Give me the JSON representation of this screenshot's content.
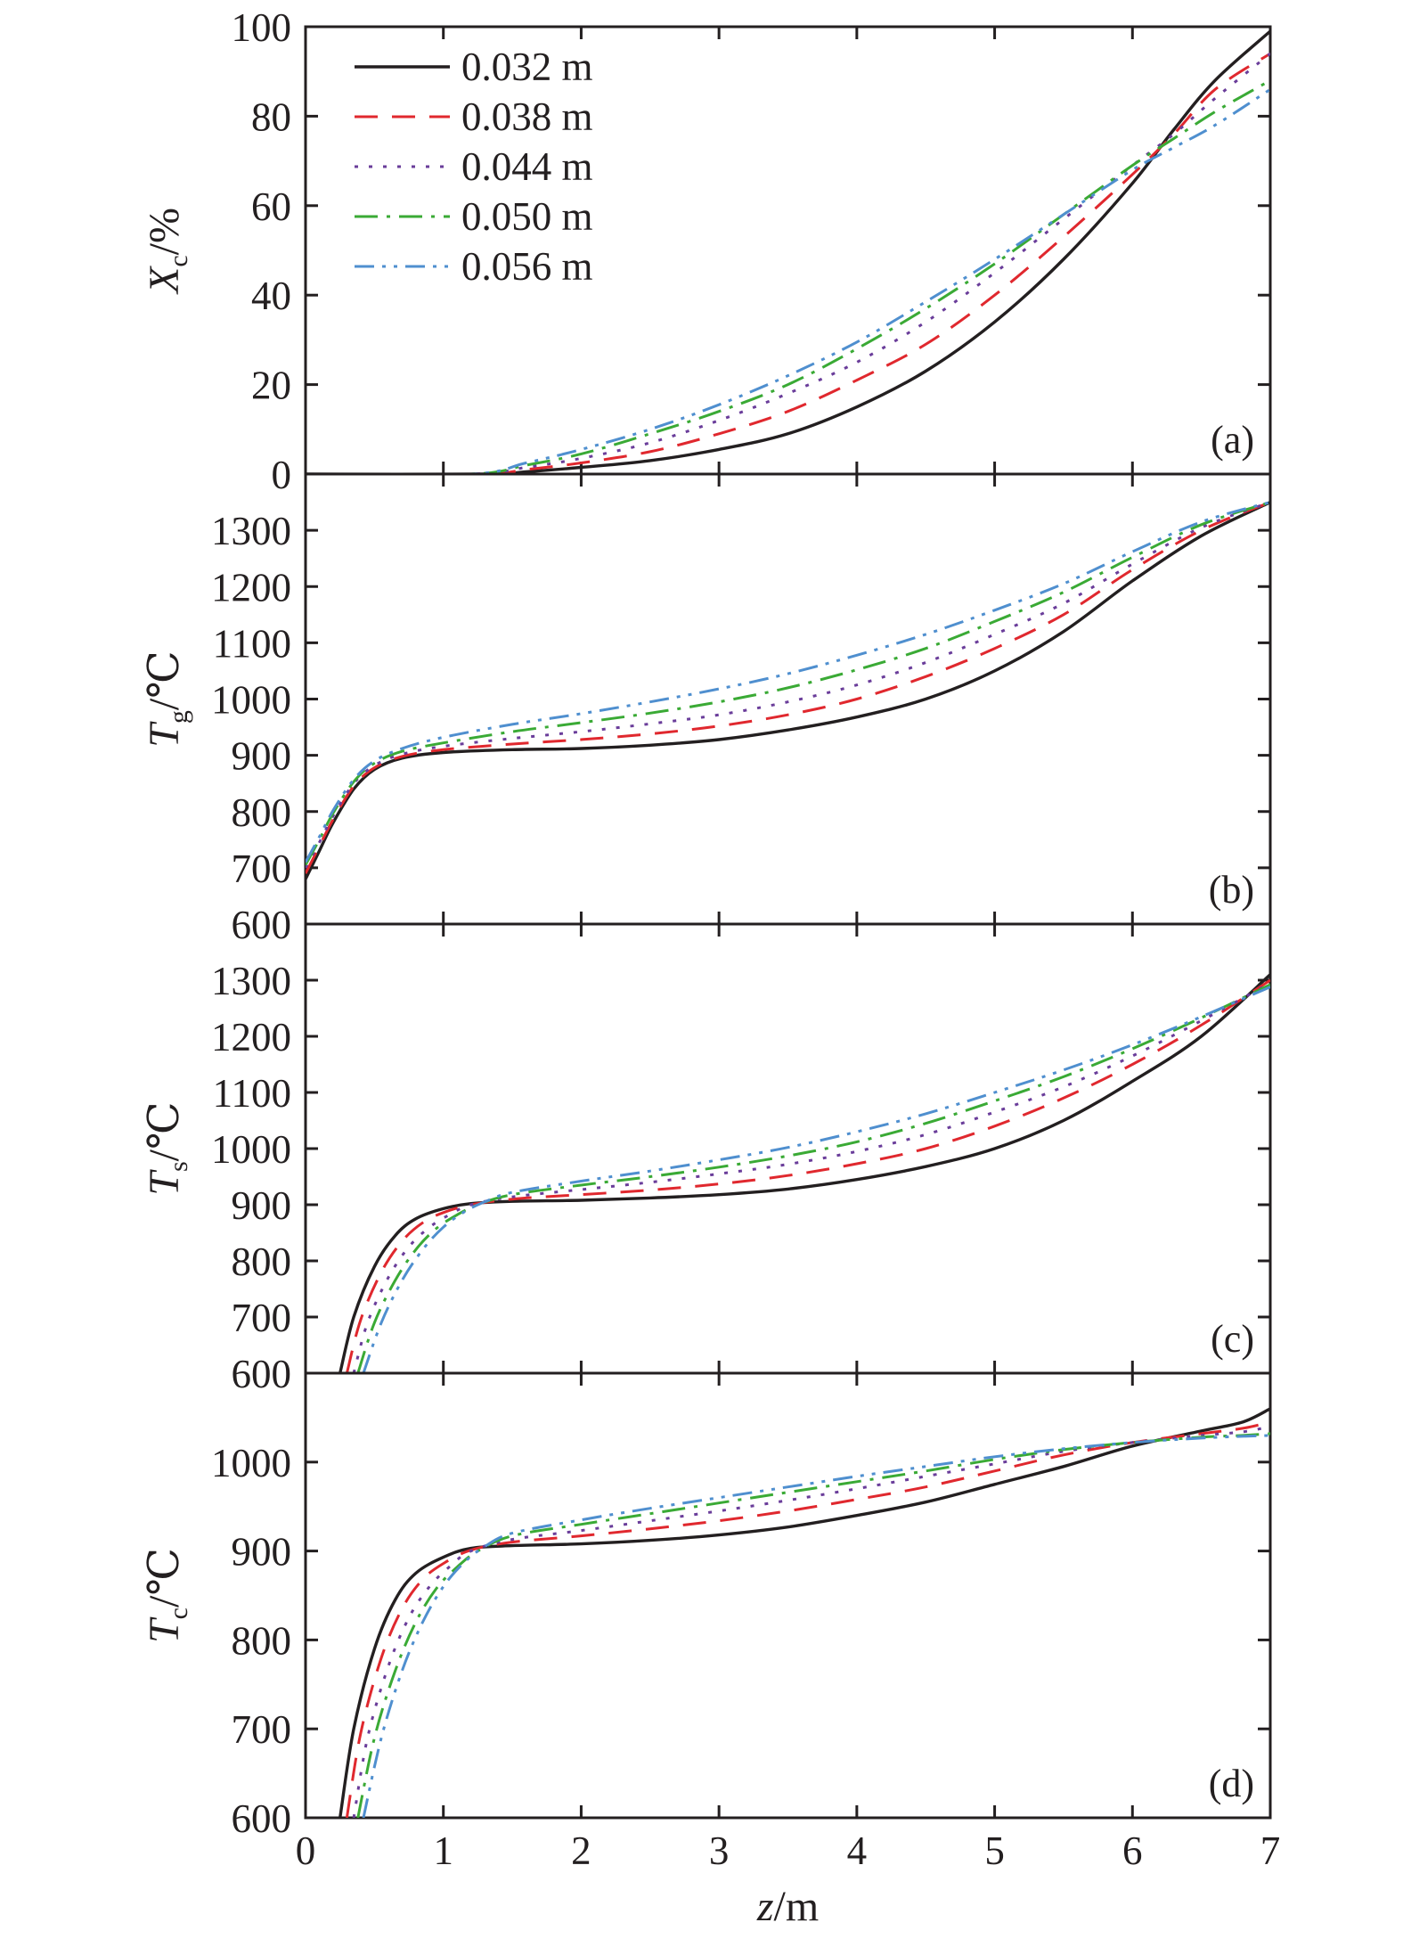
{
  "chart_data": {
    "type": "line",
    "series_styles": [
      {
        "name": "0.032 m",
        "color": "#231f20",
        "dash": "solid"
      },
      {
        "name": "0.038 m",
        "color": "#e0282e",
        "dash": "dashed"
      },
      {
        "name": "0.044 m",
        "color": "#6a3d9a",
        "dash": "dotted"
      },
      {
        "name": "0.050 m",
        "color": "#3aaa35",
        "dash": "dash-dot"
      },
      {
        "name": "0.056 m",
        "color": "#4f8fcf",
        "dash": "dash-dot-dot"
      }
    ],
    "xlabel": {
      "italic": "z",
      "rest": "/m"
    },
    "xlim": [
      0,
      7
    ],
    "xticks": [
      "0",
      "1",
      "2",
      "3",
      "4",
      "5",
      "6",
      "7"
    ],
    "legend_placement": "top-left of panel (a)",
    "panels": [
      {
        "id": "a",
        "tag": "(a)",
        "ylabel": {
          "main": "X",
          "sub": "c",
          "rest": "/%"
        },
        "ylim": [
          0,
          100
        ],
        "yticks": [
          "0",
          "20",
          "40",
          "60",
          "80",
          "100"
        ],
        "series": [
          {
            "name": "0.032 m",
            "x": [
              0,
              1.3,
              1.6,
              2.0,
              2.5,
              3.0,
              3.5,
              4.0,
              4.5,
              5.0,
              5.5,
              6.0,
              6.3,
              6.6,
              7.0
            ],
            "y": [
              0,
              0,
              0.5,
              1.5,
              3,
              5.5,
              9,
              15,
              23,
              34,
              48,
              65,
              77,
              88,
              99
            ]
          },
          {
            "name": "0.038 m",
            "x": [
              0,
              1.25,
              1.6,
              2.0,
              2.5,
              3.0,
              3.5,
              4.0,
              4.5,
              5.0,
              5.5,
              6.0,
              6.3,
              6.6,
              7.0
            ],
            "y": [
              0,
              0,
              1,
              2.5,
              5,
              9,
              14,
              21,
              29,
              40,
              53,
              67,
              76,
              86,
              94
            ]
          },
          {
            "name": "0.044 m",
            "x": [
              0,
              1.2,
              1.6,
              2.0,
              2.5,
              3.0,
              3.5,
              4.0,
              4.5,
              5.0,
              5.5,
              6.0,
              6.3,
              6.6,
              7.0
            ],
            "y": [
              0,
              0,
              1.5,
              3.5,
              7,
              12,
              18,
              25,
              34,
              45,
              57,
              69,
              76,
              84,
              94
            ]
          },
          {
            "name": "0.050 m",
            "x": [
              0,
              1.2,
              1.6,
              2.0,
              2.5,
              3.0,
              3.5,
              4.0,
              4.5,
              5.0,
              5.5,
              6.0,
              6.3,
              6.6,
              7.0
            ],
            "y": [
              0,
              0,
              2,
              4.5,
              9,
              14,
              20,
              28,
              37,
              47,
              58,
              69,
              75,
              81,
              88
            ]
          },
          {
            "name": "0.056 m",
            "x": [
              0,
              1.2,
              1.6,
              2.0,
              2.5,
              3.0,
              3.5,
              4.0,
              4.5,
              5.0,
              5.5,
              6.0,
              6.3,
              6.6,
              7.0
            ],
            "y": [
              0,
              0,
              2.5,
              5.5,
              10,
              15.5,
              22,
              29.5,
              38.5,
              48,
              58,
              68,
              73,
              78,
              86
            ]
          }
        ]
      },
      {
        "id": "b",
        "tag": "(b)",
        "ylabel": {
          "main": "T",
          "sub": "g",
          "rest": "/℃"
        },
        "ylim": [
          600,
          1400
        ],
        "yticks": [
          "600",
          "700",
          "800",
          "900",
          "1000",
          "1100",
          "1200",
          "1300"
        ],
        "series": [
          {
            "name": "0.032 m",
            "x": [
              0,
              0.1,
              0.2,
              0.35,
              0.5,
              0.7,
              1.0,
              1.5,
              2.0,
              2.5,
              3.0,
              3.5,
              4.0,
              4.5,
              5.0,
              5.5,
              6.0,
              6.5,
              7.0
            ],
            "y": [
              680,
              730,
              780,
              840,
              875,
              895,
              905,
              910,
              912,
              918,
              928,
              945,
              968,
              1000,
              1050,
              1120,
              1210,
              1290,
              1350
            ]
          },
          {
            "name": "0.038 m",
            "x": [
              0,
              0.1,
              0.2,
              0.35,
              0.5,
              0.7,
              1.0,
              1.5,
              2.0,
              2.5,
              3.0,
              3.5,
              4.0,
              4.5,
              5.0,
              5.5,
              6.0,
              6.5,
              7.0
            ],
            "y": [
              690,
              738,
              786,
              845,
              878,
              898,
              910,
              920,
              928,
              938,
              952,
              972,
              1000,
              1040,
              1090,
              1150,
              1230,
              1300,
              1350
            ]
          },
          {
            "name": "0.044 m",
            "x": [
              0,
              0.1,
              0.2,
              0.35,
              0.5,
              0.7,
              1.0,
              1.5,
              2.0,
              2.5,
              3.0,
              3.5,
              4.0,
              4.5,
              5.0,
              5.5,
              6.0,
              6.5,
              7.0
            ],
            "y": [
              700,
              745,
              792,
              850,
              882,
              902,
              916,
              930,
              942,
              956,
              972,
              995,
              1025,
              1065,
              1115,
              1170,
              1240,
              1305,
              1350
            ]
          },
          {
            "name": "0.050 m",
            "x": [
              0,
              0.1,
              0.2,
              0.35,
              0.5,
              0.7,
              1.0,
              1.5,
              2.0,
              2.5,
              3.0,
              3.5,
              4.0,
              4.5,
              5.0,
              5.5,
              6.0,
              6.5,
              7.0
            ],
            "y": [
              705,
              750,
              797,
              853,
              886,
              907,
              922,
              942,
              958,
              975,
              995,
              1020,
              1052,
              1090,
              1138,
              1190,
              1252,
              1310,
              1350
            ]
          },
          {
            "name": "0.056 m",
            "x": [
              0,
              0.1,
              0.2,
              0.35,
              0.5,
              0.7,
              1.0,
              1.5,
              2.0,
              2.5,
              3.0,
              3.5,
              4.0,
              4.5,
              5.0,
              5.5,
              6.0,
              6.5,
              7.0
            ],
            "y": [
              710,
              755,
              802,
              857,
              890,
              912,
              932,
              955,
              974,
              995,
              1018,
              1045,
              1078,
              1115,
              1158,
              1205,
              1262,
              1315,
              1350
            ]
          }
        ]
      },
      {
        "id": "c",
        "tag": "(c)",
        "ylabel": {
          "main": "T",
          "sub": "s",
          "rest": "/℃"
        },
        "ylim": [
          600,
          1400
        ],
        "yticks": [
          "600",
          "700",
          "800",
          "900",
          "1000",
          "1100",
          "1200",
          "1300"
        ],
        "series": [
          {
            "name": "0.032 m",
            "x": [
              0.25,
              0.35,
              0.5,
              0.65,
              0.8,
              1.0,
              1.2,
              1.5,
              2.0,
              2.5,
              3.0,
              3.5,
              4.0,
              4.5,
              5.0,
              5.5,
              6.0,
              6.5,
              7.0
            ],
            "y": [
              600,
              700,
              790,
              845,
              875,
              893,
              902,
              906,
              908,
              912,
              918,
              928,
              945,
              968,
              1000,
              1050,
              1120,
              1200,
              1310
            ]
          },
          {
            "name": "0.038 m",
            "x": [
              0.3,
              0.4,
              0.55,
              0.7,
              0.85,
              1.0,
              1.2,
              1.5,
              2.0,
              2.5,
              3.0,
              3.5,
              4.0,
              4.5,
              5.0,
              5.5,
              6.0,
              6.5,
              7.0
            ],
            "y": [
              600,
              695,
              780,
              835,
              868,
              886,
              900,
              910,
              918,
              926,
              937,
              952,
              973,
              1000,
              1040,
              1090,
              1150,
              1220,
              1300
            ]
          },
          {
            "name": "0.044 m",
            "x": [
              0.35,
              0.45,
              0.6,
              0.75,
              0.9,
              1.05,
              1.2,
              1.5,
              2.0,
              2.5,
              3.0,
              3.5,
              4.0,
              4.5,
              5.0,
              5.5,
              6.0,
              6.5,
              7.0
            ],
            "y": [
              600,
              690,
              770,
              825,
              860,
              883,
              900,
              914,
              927,
              940,
              955,
              972,
              995,
              1025,
              1065,
              1110,
              1165,
              1228,
              1295
            ]
          },
          {
            "name": "0.050 m",
            "x": [
              0.38,
              0.5,
              0.65,
              0.8,
              0.95,
              1.1,
              1.25,
              1.5,
              2.0,
              2.5,
              3.0,
              3.5,
              4.0,
              4.5,
              5.0,
              5.5,
              6.0,
              6.5,
              7.0
            ],
            "y": [
              600,
              690,
              765,
              820,
              858,
              882,
              900,
              918,
              935,
              950,
              967,
              987,
              1012,
              1045,
              1085,
              1128,
              1178,
              1233,
              1292
            ]
          },
          {
            "name": "0.056 m",
            "x": [
              0.42,
              0.55,
              0.7,
              0.85,
              1.0,
              1.15,
              1.3,
              1.5,
              2.0,
              2.5,
              3.0,
              3.5,
              4.0,
              4.5,
              5.0,
              5.5,
              6.0,
              6.5,
              7.0
            ],
            "y": [
              600,
              690,
              765,
              820,
              860,
              887,
              905,
              922,
              942,
              960,
              980,
              1002,
              1030,
              1062,
              1100,
              1140,
              1185,
              1235,
              1288
            ]
          }
        ]
      },
      {
        "id": "d",
        "tag": "(d)",
        "ylabel": {
          "main": "T",
          "sub": "c",
          "rest": "/℃"
        },
        "ylim": [
          600,
          1100
        ],
        "yticks": [
          "600",
          "700",
          "800",
          "900",
          "1000"
        ],
        "series": [
          {
            "name": "0.032 m",
            "x": [
              0.25,
              0.35,
              0.5,
              0.65,
              0.8,
              1.0,
              1.2,
              1.5,
              2.0,
              2.5,
              3.0,
              3.5,
              4.0,
              4.5,
              5.0,
              5.5,
              6.0,
              6.5,
              6.8,
              7.0
            ],
            "y": [
              600,
              700,
              790,
              845,
              875,
              893,
              903,
              906,
              908,
              912,
              918,
              927,
              940,
              955,
              975,
              995,
              1018,
              1035,
              1045,
              1060
            ]
          },
          {
            "name": "0.038 m",
            "x": [
              0.3,
              0.4,
              0.55,
              0.7,
              0.85,
              1.0,
              1.2,
              1.5,
              2.0,
              2.5,
              3.0,
              3.5,
              4.0,
              4.5,
              5.0,
              5.5,
              6.0,
              6.5,
              6.8,
              7.0
            ],
            "y": [
              600,
              695,
              780,
              835,
              868,
              886,
              901,
              910,
              917,
              925,
              934,
              945,
              958,
              972,
              990,
              1008,
              1022,
              1032,
              1038,
              1045
            ]
          },
          {
            "name": "0.044 m",
            "x": [
              0.35,
              0.45,
              0.6,
              0.75,
              0.9,
              1.05,
              1.2,
              1.5,
              2.0,
              2.5,
              3.0,
              3.5,
              4.0,
              4.5,
              5.0,
              5.5,
              6.0,
              6.5,
              6.8,
              7.0
            ],
            "y": [
              600,
              690,
              770,
              825,
              860,
              883,
              900,
              913,
              923,
              934,
              945,
              957,
              970,
              984,
              998,
              1012,
              1022,
              1030,
              1034,
              1040
            ]
          },
          {
            "name": "0.050 m",
            "x": [
              0.38,
              0.5,
              0.65,
              0.8,
              0.95,
              1.1,
              1.25,
              1.5,
              2.0,
              2.5,
              3.0,
              3.5,
              4.0,
              4.5,
              5.0,
              5.5,
              6.0,
              6.5,
              6.8,
              7.0
            ],
            "y": [
              600,
              690,
              765,
              820,
              858,
              882,
              900,
              917,
              930,
              942,
              954,
              966,
              978,
              990,
              1003,
              1014,
              1022,
              1028,
              1030,
              1032
            ]
          },
          {
            "name": "0.056 m",
            "x": [
              0.42,
              0.55,
              0.7,
              0.85,
              1.0,
              1.15,
              1.3,
              1.5,
              2.0,
              2.5,
              3.0,
              3.5,
              4.0,
              4.5,
              5.0,
              5.5,
              6.0,
              6.5,
              6.8,
              7.0
            ],
            "y": [
              600,
              690,
              765,
              820,
              860,
              887,
              905,
              920,
              935,
              948,
              960,
              972,
              984,
              995,
              1006,
              1015,
              1022,
              1027,
              1029,
              1030
            ]
          }
        ]
      }
    ]
  }
}
